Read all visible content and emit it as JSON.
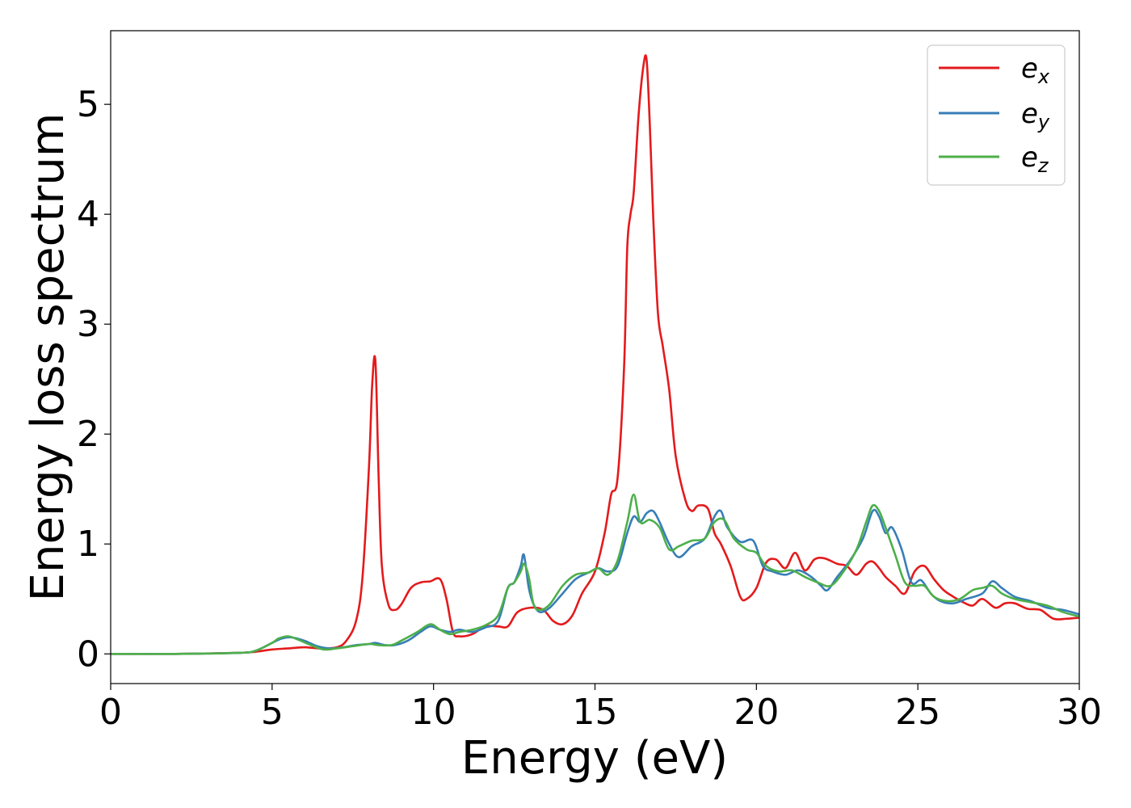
{
  "chart_data": {
    "type": "line",
    "xlabel": "Energy (eV)",
    "ylabel": "Energy loss spectrum",
    "xlim": [
      0,
      30
    ],
    "ylim": [
      -0.27,
      5.67
    ],
    "xticks": [
      0,
      5,
      10,
      15,
      20,
      25,
      30
    ],
    "yticks": [
      0,
      1,
      2,
      3,
      4,
      5
    ],
    "xtick_labels": [
      "0",
      "5",
      "10",
      "15",
      "20",
      "25",
      "30"
    ],
    "ytick_labels": [
      "0",
      "1",
      "2",
      "3",
      "4",
      "5"
    ],
    "grid": false,
    "legend_position": "top-right",
    "series": [
      {
        "name": "e",
        "subscript": "x",
        "color": "#e41a1c",
        "x": [
          0,
          2,
          4,
          4.5,
          5,
          5.5,
          6,
          6.5,
          7,
          7.3,
          7.6,
          7.8,
          8.0,
          8.1,
          8.2,
          8.3,
          8.4,
          8.6,
          8.8,
          9.0,
          9.3,
          9.6,
          9.9,
          10.2,
          10.4,
          10.6,
          10.8,
          11.2,
          11.6,
          12.0,
          12.3,
          12.6,
          13.0,
          13.4,
          13.7,
          14.0,
          14.3,
          14.6,
          15.0,
          15.3,
          15.5,
          15.7,
          15.9,
          16.0,
          16.1,
          16.2,
          16.35,
          16.5,
          16.6,
          16.7,
          16.8,
          16.95,
          17.1,
          17.3,
          17.5,
          17.8,
          18.0,
          18.2,
          18.5,
          18.7,
          18.9,
          19.2,
          19.5,
          19.7,
          20.0,
          20.3,
          20.6,
          20.9,
          21.2,
          21.5,
          21.8,
          22.1,
          22.5,
          22.8,
          23.1,
          23.4,
          23.6,
          23.8,
          24.0,
          24.3,
          24.6,
          24.9,
          25.2,
          25.5,
          25.8,
          26.1,
          26.4,
          26.7,
          27.0,
          27.4,
          27.7,
          28.0,
          28.4,
          28.8,
          29.2,
          29.6,
          30.0
        ],
        "values": [
          0.0,
          0.0,
          0.01,
          0.02,
          0.04,
          0.05,
          0.06,
          0.05,
          0.06,
          0.12,
          0.3,
          0.7,
          1.7,
          2.45,
          2.66,
          1.6,
          0.8,
          0.45,
          0.4,
          0.45,
          0.6,
          0.65,
          0.66,
          0.68,
          0.5,
          0.2,
          0.16,
          0.18,
          0.25,
          0.25,
          0.25,
          0.38,
          0.42,
          0.4,
          0.3,
          0.27,
          0.35,
          0.55,
          0.75,
          1.1,
          1.45,
          1.6,
          2.6,
          3.7,
          4.0,
          4.2,
          4.9,
          5.35,
          5.4,
          4.8,
          4.0,
          3.1,
          2.8,
          2.4,
          1.8,
          1.4,
          1.3,
          1.35,
          1.32,
          1.1,
          1.0,
          0.8,
          0.52,
          0.5,
          0.6,
          0.83,
          0.86,
          0.78,
          0.92,
          0.76,
          0.86,
          0.87,
          0.82,
          0.8,
          0.72,
          0.82,
          0.84,
          0.78,
          0.7,
          0.62,
          0.55,
          0.75,
          0.8,
          0.68,
          0.58,
          0.52,
          0.47,
          0.44,
          0.5,
          0.42,
          0.46,
          0.46,
          0.41,
          0.4,
          0.32,
          0.32,
          0.33
        ]
      },
      {
        "name": "e",
        "subscript": "y",
        "color": "#377eb8",
        "x": [
          0,
          2,
          4,
          4.5,
          5,
          5.3,
          5.6,
          6.0,
          6.4,
          6.8,
          7.2,
          7.6,
          8.0,
          8.2,
          8.5,
          8.8,
          9.2,
          9.6,
          9.9,
          10.2,
          10.5,
          10.8,
          11.2,
          11.6,
          12.0,
          12.3,
          12.5,
          12.7,
          12.8,
          12.95,
          13.1,
          13.3,
          13.6,
          14.0,
          14.4,
          14.8,
          15.1,
          15.4,
          15.7,
          16.0,
          16.2,
          16.4,
          16.6,
          16.8,
          17.0,
          17.3,
          17.6,
          18.0,
          18.4,
          18.7,
          18.9,
          19.1,
          19.5,
          19.9,
          20.2,
          20.5,
          20.9,
          21.3,
          21.7,
          22.0,
          22.2,
          22.5,
          22.9,
          23.3,
          23.6,
          23.8,
          24.0,
          24.2,
          24.5,
          24.8,
          25.1,
          25.4,
          25.7,
          26.1,
          26.5,
          27.0,
          27.3,
          27.6,
          28.0,
          28.5,
          29.0,
          29.5,
          30.0
        ],
        "values": [
          0.0,
          0.0,
          0.01,
          0.03,
          0.1,
          0.14,
          0.15,
          0.12,
          0.07,
          0.05,
          0.06,
          0.08,
          0.09,
          0.1,
          0.08,
          0.08,
          0.12,
          0.2,
          0.25,
          0.22,
          0.2,
          0.22,
          0.2,
          0.24,
          0.3,
          0.6,
          0.65,
          0.8,
          0.9,
          0.6,
          0.45,
          0.38,
          0.42,
          0.55,
          0.68,
          0.74,
          0.78,
          0.75,
          0.8,
          1.1,
          1.25,
          1.2,
          1.28,
          1.3,
          1.2,
          1.0,
          0.88,
          0.98,
          1.05,
          1.25,
          1.3,
          1.15,
          1.02,
          1.03,
          0.8,
          0.75,
          0.72,
          0.76,
          0.7,
          0.62,
          0.58,
          0.7,
          0.85,
          1.05,
          1.3,
          1.25,
          1.1,
          1.15,
          0.95,
          0.65,
          0.67,
          0.55,
          0.48,
          0.46,
          0.5,
          0.55,
          0.66,
          0.6,
          0.52,
          0.48,
          0.42,
          0.4,
          0.36
        ]
      },
      {
        "name": "e",
        "subscript": "z",
        "color": "#4daf4a",
        "x": [
          0,
          2,
          4,
          4.5,
          5,
          5.2,
          5.5,
          5.8,
          6.2,
          6.6,
          7.0,
          7.5,
          8.0,
          8.3,
          8.7,
          9.0,
          9.5,
          9.9,
          10.2,
          10.5,
          10.8,
          11.2,
          11.6,
          12.0,
          12.3,
          12.5,
          12.7,
          12.8,
          12.95,
          13.1,
          13.3,
          13.6,
          14.0,
          14.4,
          14.8,
          15.1,
          15.4,
          15.7,
          16.0,
          16.2,
          16.4,
          16.7,
          17.0,
          17.3,
          17.6,
          18.0,
          18.4,
          18.7,
          19.0,
          19.3,
          19.7,
          20.0,
          20.3,
          20.7,
          21.1,
          21.5,
          21.9,
          22.3,
          22.7,
          23.1,
          23.4,
          23.6,
          23.8,
          24.0,
          24.3,
          24.6,
          24.9,
          25.2,
          25.5,
          25.9,
          26.3,
          26.7,
          27.0,
          27.3,
          27.6,
          28.0,
          28.5,
          29.0,
          29.5,
          30.0
        ],
        "values": [
          0.0,
          0.0,
          0.01,
          0.03,
          0.1,
          0.14,
          0.16,
          0.13,
          0.08,
          0.04,
          0.05,
          0.07,
          0.09,
          0.08,
          0.08,
          0.12,
          0.2,
          0.27,
          0.22,
          0.18,
          0.2,
          0.22,
          0.26,
          0.35,
          0.6,
          0.65,
          0.75,
          0.82,
          0.7,
          0.45,
          0.4,
          0.45,
          0.62,
          0.72,
          0.74,
          0.78,
          0.72,
          0.85,
          1.2,
          1.45,
          1.2,
          1.22,
          1.15,
          0.95,
          0.98,
          1.03,
          1.05,
          1.2,
          1.22,
          1.05,
          0.95,
          0.92,
          0.8,
          0.75,
          0.76,
          0.7,
          0.65,
          0.62,
          0.75,
          0.95,
          1.2,
          1.35,
          1.3,
          1.15,
          0.9,
          0.65,
          0.62,
          0.62,
          0.52,
          0.48,
          0.5,
          0.58,
          0.6,
          0.62,
          0.55,
          0.5,
          0.47,
          0.44,
          0.38,
          0.34
        ]
      }
    ]
  }
}
